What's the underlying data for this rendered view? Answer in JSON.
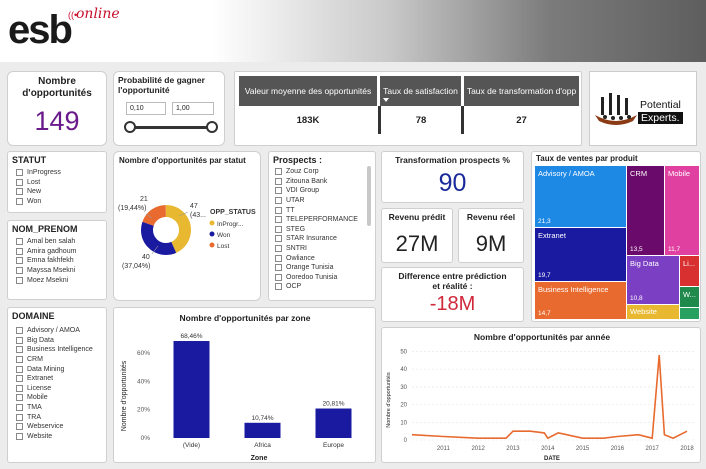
{
  "header": {
    "logo_main": "esb",
    "logo_sub": "online"
  },
  "kpi_count": {
    "label": "Nombre d'opportunités",
    "value": "149"
  },
  "probability": {
    "label": "Probabilité de gagner l'opportunité",
    "min": "0,10",
    "max": "1,00"
  },
  "table": {
    "headers": [
      "Valeur moyenne des opportunités",
      "Taux de satisfaction",
      "Taux de transformation d'opp"
    ],
    "values": [
      "183K",
      "78",
      "27"
    ]
  },
  "partner_logo": {
    "line1": "Potential",
    "line2": "Experts."
  },
  "statut": {
    "title": "STATUT",
    "items": [
      "InProgress",
      "Lost",
      "New",
      "Won"
    ]
  },
  "nom_prenom": {
    "title": "NOM_PRENOM",
    "items": [
      "Amal ben salah",
      "Amira gadhoum",
      "Emna fakhfekh",
      "Mayssa Msekni",
      "Moez Msekni"
    ]
  },
  "domaine": {
    "title": "DOMAINE",
    "items": [
      "Advisory / AMOA",
      "Big Data",
      "Business Intelligence",
      "CRM",
      "Data Mining",
      "Extranet",
      "License",
      "Mobile",
      "TMA",
      "TRA",
      "Webservice",
      "Website"
    ]
  },
  "donut": {
    "title": "Nombre d'opportunités par statut",
    "legend_title": "OPP_STATUS",
    "legend": [
      "InProgr...",
      "Won",
      "Lost"
    ],
    "labels": {
      "inprogress": "47",
      "inprogress_pct": "(43...",
      "won": "40",
      "won_pct": "(37,04%)",
      "lost": "21",
      "lost_pct": "(19,44%)"
    },
    "colors": {
      "inprogress": "#e8b830",
      "won": "#1a1aa0",
      "lost": "#e86a2e"
    }
  },
  "prospects": {
    "title": "Prospects :",
    "items": [
      "Zouz Corp",
      "Zitouna Bank",
      "VDI Group",
      "UTAR",
      "TT",
      "TELEPERFORMANCE",
      "STEG",
      "STAR Insurance",
      "SNTRI",
      "Owliance",
      "Orange Tunisia",
      "Ooredoo Tunisia",
      "OCP"
    ]
  },
  "transformation": {
    "label": "Transformation prospects %",
    "value": "90"
  },
  "revenu_predit": {
    "label": "Revenu prédit",
    "value": "27M"
  },
  "revenu_reel": {
    "label": "Revenu réel",
    "value": "9M"
  },
  "difference": {
    "label": "Difference entre prédiction et réalité :",
    "value": "-18M"
  },
  "treemap": {
    "title": "Taux de ventes par produit",
    "items": [
      {
        "name": "Advisory / AMOA",
        "value": "21,3",
        "color": "#1e88e5"
      },
      {
        "name": "Extranet",
        "value": "19,7",
        "color": "#1a1aa0"
      },
      {
        "name": "Business Intelligence",
        "value": "14,7",
        "color": "#e86a2e"
      },
      {
        "name": "CRM",
        "value": "13,5",
        "color": "#6a0a6a"
      },
      {
        "name": "Mobile",
        "value": "11,7",
        "color": "#e040a0"
      },
      {
        "name": "Big Data",
        "value": "10,8",
        "color": "#7b3fc4"
      },
      {
        "name": "Website",
        "value": "",
        "color": "#e8b830"
      },
      {
        "name": "Li...",
        "value": "",
        "color": "#d83030"
      },
      {
        "name": "W...",
        "value": "",
        "color": "#1f8a4c"
      }
    ]
  },
  "chart_data": [
    {
      "type": "bar",
      "title": "Nombre d'opportunités par zone",
      "xlabel": "Zone",
      "ylabel": "Nombre d'opportunités",
      "categories": [
        "(Vide)",
        "Africa",
        "Europe"
      ],
      "values": [
        68.46,
        10.74,
        20.81
      ],
      "data_labels": [
        "68,46%",
        "10,74%",
        "20,81%"
      ],
      "y_ticks": [
        "0%",
        "20%",
        "40%",
        "60%"
      ],
      "ylim": [
        0,
        72
      ],
      "color": "#1a1aa0"
    },
    {
      "type": "line",
      "title": "Nombre d'opportunités par année",
      "xlabel": "DATE",
      "ylabel": "Nombre d'opportunités",
      "x_ticks": [
        "2011",
        "2012",
        "2013",
        "2014",
        "2015",
        "2016",
        "2017",
        "2018"
      ],
      "y_ticks": [
        "0",
        "10",
        "20",
        "30",
        "40",
        "50"
      ],
      "xlim": [
        2010.1,
        2018.2
      ],
      "ylim": [
        0,
        52
      ],
      "points": [
        [
          2010.1,
          3
        ],
        [
          2011,
          2
        ],
        [
          2012,
          1
        ],
        [
          2012.8,
          1
        ],
        [
          2013,
          5
        ],
        [
          2013.5,
          5
        ],
        [
          2013.9,
          4
        ],
        [
          2014,
          1
        ],
        [
          2014.3,
          4
        ],
        [
          2015,
          1
        ],
        [
          2015.6,
          1
        ],
        [
          2016,
          2
        ],
        [
          2016.6,
          3
        ],
        [
          2017,
          1
        ],
        [
          2017.2,
          48
        ],
        [
          2017.35,
          3
        ],
        [
          2017.6,
          1
        ],
        [
          2018,
          5
        ]
      ],
      "color": "#e86a2e"
    }
  ]
}
